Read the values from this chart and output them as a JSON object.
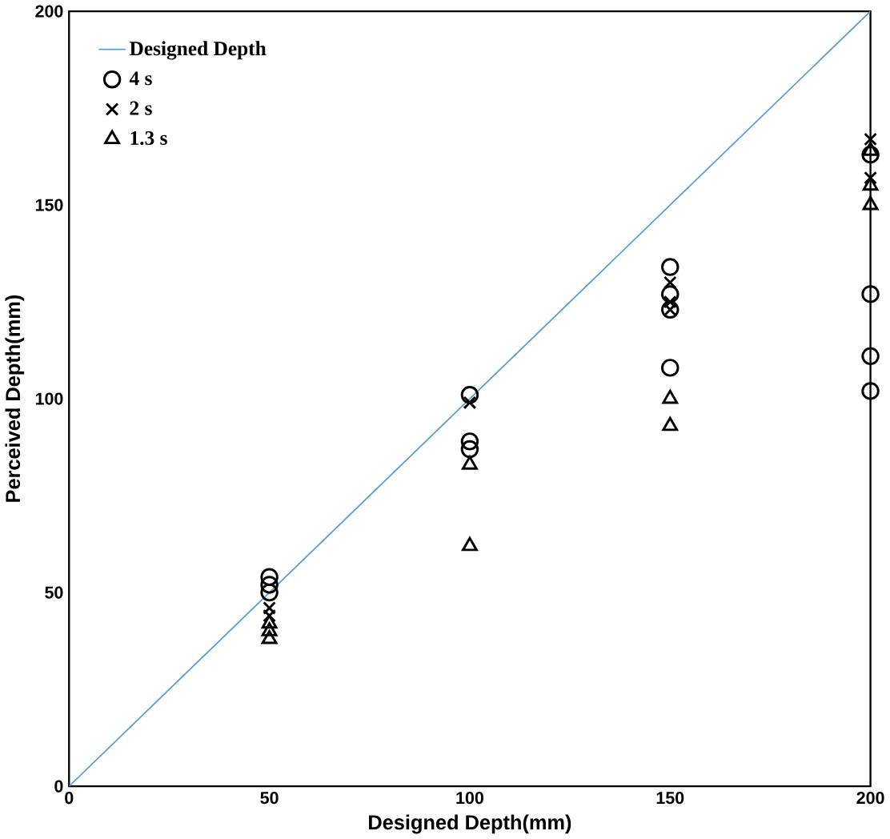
{
  "chart_data": {
    "type": "scatter",
    "xlabel": "Designed Depth(mm)",
    "ylabel": "Perceived Depth(mm)",
    "xlim": [
      0,
      200
    ],
    "ylim": [
      0,
      200
    ],
    "xticks": [
      0,
      50,
      100,
      150,
      200
    ],
    "yticks": [
      0,
      50,
      100,
      150,
      200
    ],
    "legend": "top left",
    "grid": false,
    "series": [
      {
        "name": "Designed   Depth",
        "type": "line",
        "color": "#5b9bd5",
        "marker": "none",
        "x": [
          0,
          200
        ],
        "values": [
          0,
          200
        ]
      },
      {
        "name": "4 s",
        "color": "#000000",
        "marker": "circle",
        "x": [
          50,
          50,
          50,
          100,
          100,
          100,
          150,
          150,
          150,
          150,
          200,
          200,
          200,
          200
        ],
        "values": [
          54,
          52,
          50,
          101,
          89,
          87,
          134,
          127,
          123,
          108,
          163,
          127,
          111,
          102
        ]
      },
      {
        "name": "2 s",
        "color": "#000000",
        "marker": "cross",
        "x": [
          50,
          50,
          100,
          150,
          150,
          150,
          200,
          200
        ],
        "values": [
          46,
          44,
          99,
          130,
          125,
          123,
          167,
          157
        ]
      },
      {
        "name": "1.3 s",
        "color": "#000000",
        "marker": "triangle",
        "x": [
          50,
          50,
          50,
          100,
          100,
          150,
          150,
          200,
          200,
          200
        ],
        "values": [
          42,
          40,
          38,
          83,
          62,
          100,
          93,
          164,
          155,
          150
        ]
      }
    ]
  }
}
